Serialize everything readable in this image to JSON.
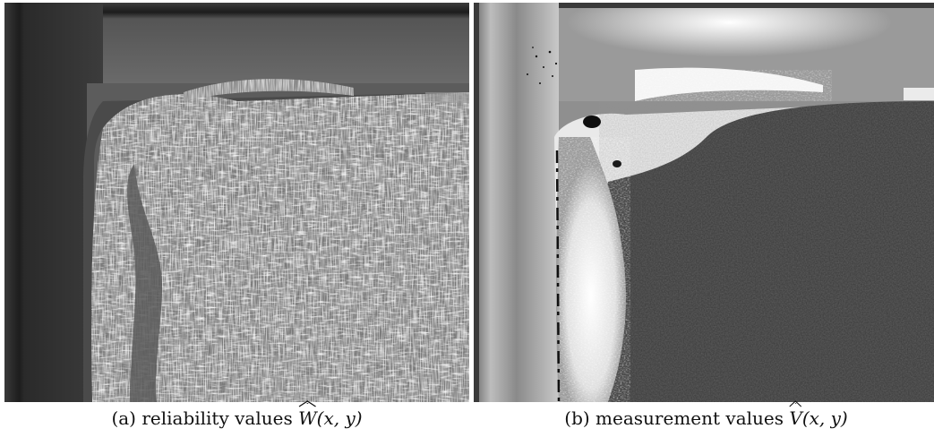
{
  "figure": {
    "panel_a": {
      "caption_prefix": "(a) reliability values",
      "symbol": "W",
      "args": "(x, y)"
    },
    "panel_b": {
      "caption_prefix": "(b) measurement values",
      "symbol": "V",
      "args": "(x, y)"
    }
  },
  "colors": {
    "panel_a_background": "#2e2e2e",
    "panel_a_bright": "#e8e8e8",
    "panel_b_background": "#3a3a3a",
    "panel_b_bright": "#f2f2f2"
  }
}
